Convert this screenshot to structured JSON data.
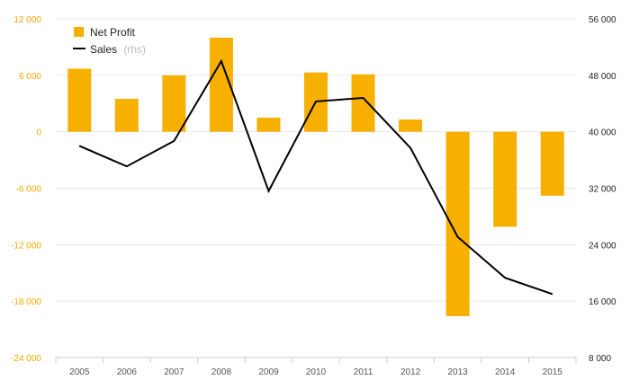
{
  "chart_data": {
    "type": "bar",
    "categories": [
      "2005",
      "2006",
      "2007",
      "2008",
      "2009",
      "2010",
      "2011",
      "2012",
      "2013",
      "2014",
      "2015"
    ],
    "series": [
      {
        "name": "Net Profit",
        "type": "bar",
        "axis": "left",
        "color": "#F8B000",
        "values": [
          6700,
          3500,
          6000,
          10000,
          1500,
          6300,
          6100,
          1300,
          -19600,
          -10100,
          -6800
        ]
      },
      {
        "name": "Sales",
        "name_suffix": "(rhs)",
        "type": "line",
        "axis": "right",
        "color": "#000000",
        "values": [
          38000,
          35100,
          38700,
          50000,
          31600,
          44300,
          44800,
          37700,
          25100,
          19300,
          17000
        ]
      }
    ],
    "y_left": {
      "lim": [
        -24000,
        12000
      ],
      "ticks": [
        12000,
        6000,
        0,
        -6000,
        -12000,
        -18000,
        -24000
      ],
      "tick_labels": [
        "12 000",
        "6 000",
        "0",
        "-6 000",
        "-12 000",
        "-18 000",
        "-24 000"
      ]
    },
    "y_right": {
      "lim": [
        8000,
        56000
      ],
      "ticks": [
        56000,
        48000,
        40000,
        32000,
        24000,
        16000,
        8000
      ],
      "tick_labels": [
        "56 000",
        "48 000",
        "40 000",
        "32 000",
        "24 000",
        "16 000",
        "8 000"
      ]
    },
    "grid": true,
    "legend_position": "top-left",
    "title": "",
    "xlabel": "",
    "ylabel": ""
  }
}
